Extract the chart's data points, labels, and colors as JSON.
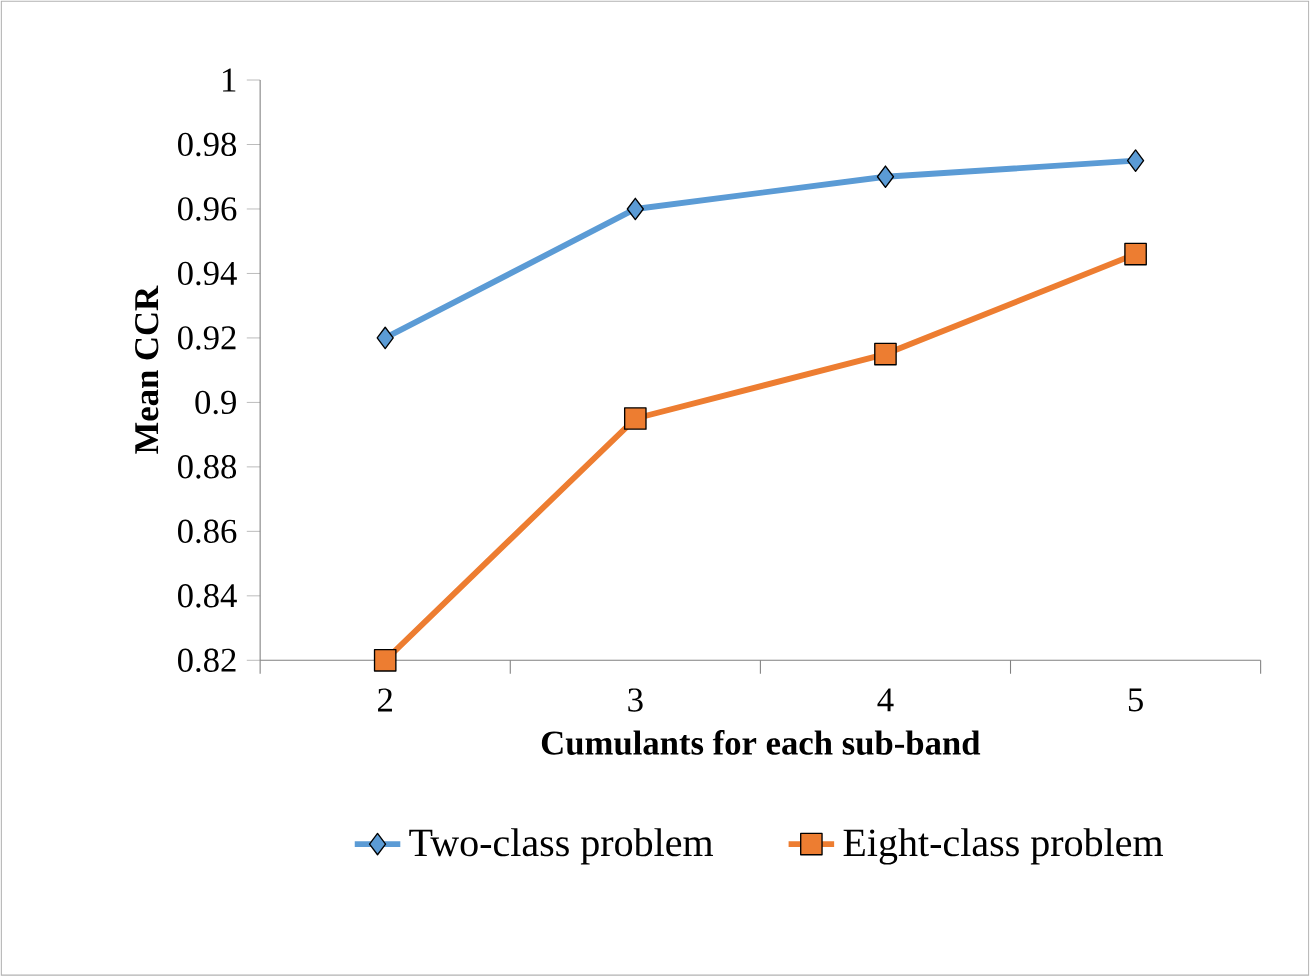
{
  "chart_data": {
    "type": "line",
    "xlabel": "Cumulants for each sub-band",
    "ylabel": "Mean CCR",
    "categories": [
      "2",
      "3",
      "4",
      "5"
    ],
    "series": [
      {
        "name": "Two-class problem",
        "color": "#5b9bd5",
        "marker": "diamond",
        "values": [
          0.92,
          0.96,
          0.97,
          0.975
        ]
      },
      {
        "name": "Eight-class problem",
        "color": "#ed7d31",
        "marker": "square",
        "values": [
          0.82,
          0.895,
          0.915,
          0.946
        ]
      }
    ],
    "ylim": [
      0.82,
      1
    ],
    "yticks": [
      0.82,
      0.84,
      0.86,
      0.88,
      0.9,
      0.92,
      0.94,
      0.96,
      0.98,
      1
    ],
    "grid": false,
    "legend": "bottom",
    "line_style": "solid"
  }
}
